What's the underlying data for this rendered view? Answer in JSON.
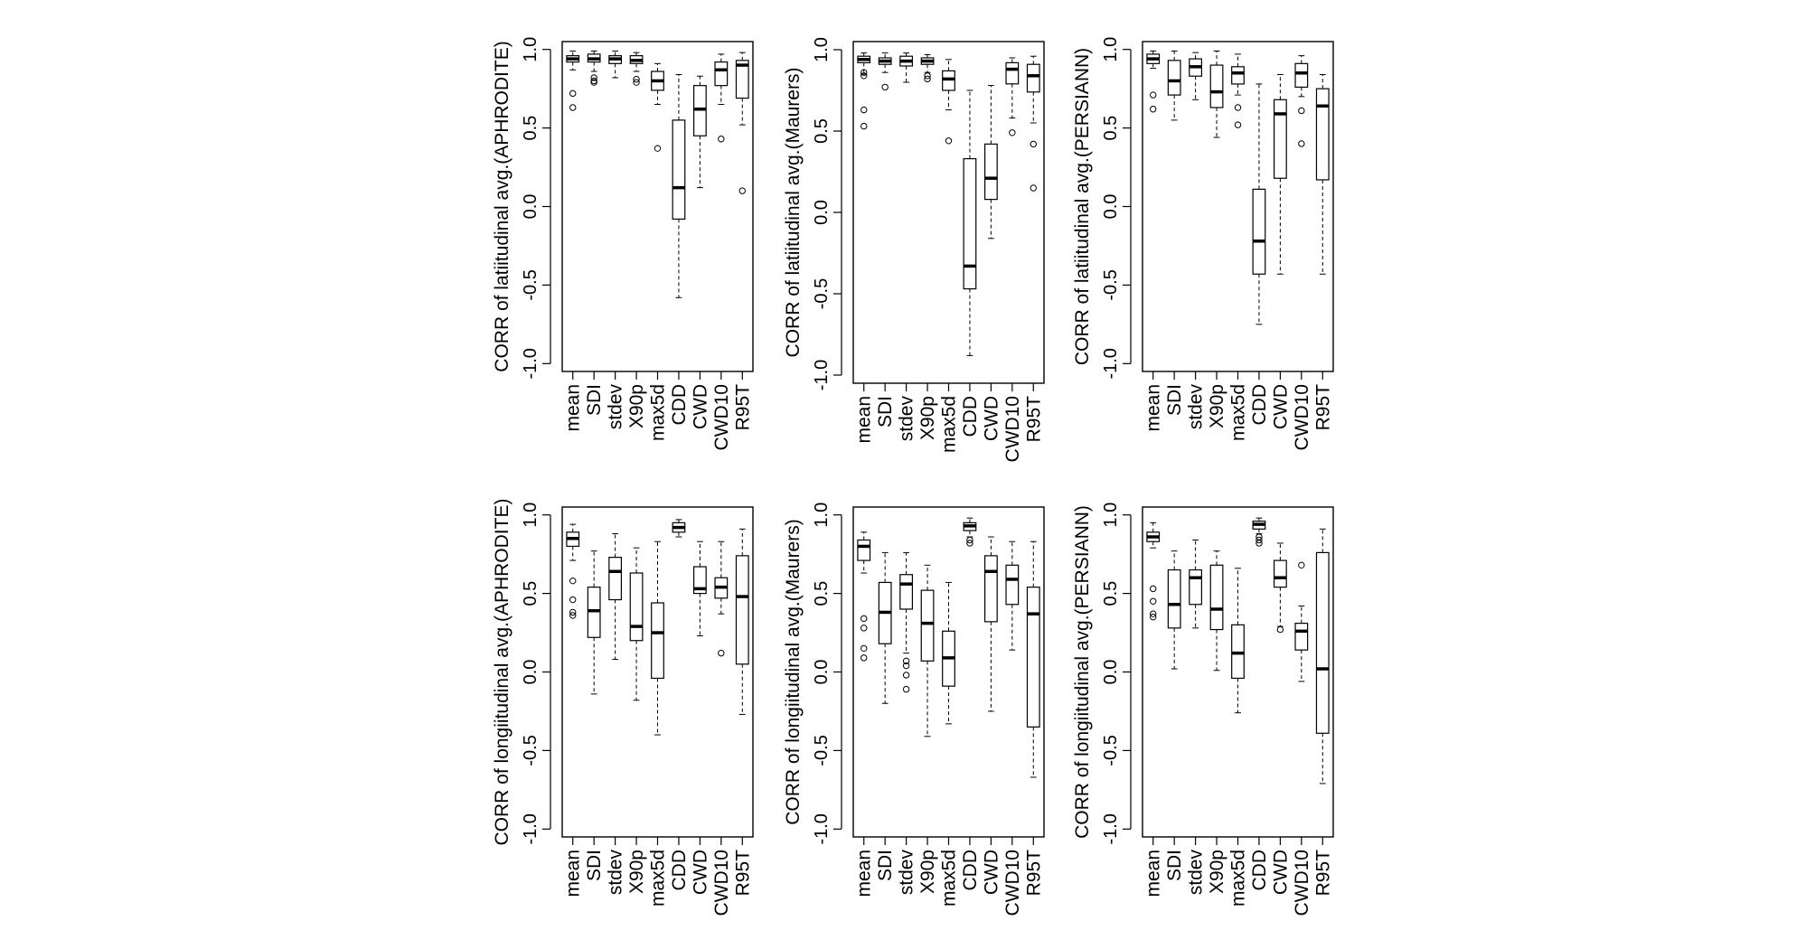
{
  "chart_data": [
    {
      "type": "box",
      "ylabel": "CORR of latiitudinal avg.(APHRODITE)",
      "categories": [
        "mean",
        "SDI",
        "stdev",
        "X90p",
        "max5d",
        "CDD",
        "CWD",
        "CWD10",
        "R95T"
      ],
      "yticks": [
        "-1.0",
        "-0.5",
        "0.0",
        "0.5",
        "1.0"
      ],
      "ylim": [
        -1.05,
        1.05
      ],
      "boxes": [
        {
          "min": 0.87,
          "q1": 0.92,
          "median": 0.94,
          "q3": 0.96,
          "max": 0.99,
          "outliers": [
            0.72,
            0.63
          ]
        },
        {
          "min": 0.86,
          "q1": 0.92,
          "median": 0.94,
          "q3": 0.97,
          "max": 0.99,
          "outliers": [
            0.82,
            0.8,
            0.79
          ]
        },
        {
          "min": 0.82,
          "q1": 0.91,
          "median": 0.94,
          "q3": 0.96,
          "max": 0.99,
          "outliers": []
        },
        {
          "min": 0.86,
          "q1": 0.91,
          "median": 0.93,
          "q3": 0.96,
          "max": 0.98,
          "outliers": [
            0.81,
            0.79
          ]
        },
        {
          "min": 0.65,
          "q1": 0.74,
          "median": 0.8,
          "q3": 0.86,
          "max": 0.91,
          "outliers": [
            0.37
          ]
        },
        {
          "min": -0.58,
          "q1": -0.08,
          "median": 0.12,
          "q3": 0.55,
          "max": 0.84,
          "outliers": []
        },
        {
          "min": 0.12,
          "q1": 0.45,
          "median": 0.62,
          "q3": 0.77,
          "max": 0.83,
          "outliers": []
        },
        {
          "min": 0.65,
          "q1": 0.77,
          "median": 0.87,
          "q3": 0.92,
          "max": 0.97,
          "outliers": [
            0.43
          ]
        },
        {
          "min": 0.52,
          "q1": 0.69,
          "median": 0.9,
          "q3": 0.93,
          "max": 0.98,
          "outliers": [
            0.1
          ]
        }
      ]
    },
    {
      "type": "box",
      "ylabel": "CORR of latiitudinal avg.(Maurers)",
      "categories": [
        "mean",
        "SDI",
        "stdev",
        "X90p",
        "max5d",
        "CDD",
        "CWD",
        "CWD10",
        "R95T"
      ],
      "yticks": [
        "-1.0",
        "-0.5",
        "0.0",
        "0.5",
        "1.0"
      ],
      "ylim": [
        -1.05,
        1.05
      ],
      "boxes": [
        {
          "min": 0.85,
          "q1": 0.92,
          "median": 0.94,
          "q3": 0.96,
          "max": 0.98,
          "outliers": [
            0.86,
            0.84,
            0.63,
            0.53
          ]
        },
        {
          "min": 0.86,
          "q1": 0.91,
          "median": 0.93,
          "q3": 0.95,
          "max": 0.98,
          "outliers": [
            0.77
          ]
        },
        {
          "min": 0.8,
          "q1": 0.9,
          "median": 0.93,
          "q3": 0.96,
          "max": 0.98,
          "outliers": []
        },
        {
          "min": 0.86,
          "q1": 0.91,
          "median": 0.93,
          "q3": 0.95,
          "max": 0.97,
          "outliers": [
            0.84,
            0.82
          ]
        },
        {
          "min": 0.63,
          "q1": 0.75,
          "median": 0.82,
          "q3": 0.87,
          "max": 0.94,
          "outliers": [
            0.44
          ]
        },
        {
          "min": -0.88,
          "q1": -0.47,
          "median": -0.33,
          "q3": 0.33,
          "max": 0.75,
          "outliers": []
        },
        {
          "min": -0.16,
          "q1": 0.08,
          "median": 0.21,
          "q3": 0.42,
          "max": 0.78,
          "outliers": []
        },
        {
          "min": 0.58,
          "q1": 0.79,
          "median": 0.88,
          "q3": 0.92,
          "max": 0.95,
          "outliers": [
            0.49
          ]
        },
        {
          "min": 0.55,
          "q1": 0.74,
          "median": 0.84,
          "q3": 0.91,
          "max": 0.96,
          "outliers": [
            0.42,
            0.15
          ]
        }
      ]
    },
    {
      "type": "box",
      "ylabel": "CORR of latiitudinal avg.(PERSIANN)",
      "categories": [
        "mean",
        "SDI",
        "stdev",
        "X90p",
        "max5d",
        "CDD",
        "CWD",
        "CWD10",
        "R95T"
      ],
      "yticks": [
        "-1.0",
        "-0.5",
        "0.0",
        "0.5",
        "1.0"
      ],
      "ylim": [
        -1.05,
        1.05
      ],
      "boxes": [
        {
          "min": 0.88,
          "q1": 0.91,
          "median": 0.94,
          "q3": 0.97,
          "max": 0.99,
          "outliers": [
            0.71,
            0.62
          ]
        },
        {
          "min": 0.55,
          "q1": 0.71,
          "median": 0.8,
          "q3": 0.93,
          "max": 0.99,
          "outliers": []
        },
        {
          "min": 0.68,
          "q1": 0.83,
          "median": 0.89,
          "q3": 0.94,
          "max": 0.98,
          "outliers": []
        },
        {
          "min": 0.44,
          "q1": 0.63,
          "median": 0.73,
          "q3": 0.9,
          "max": 0.99,
          "outliers": []
        },
        {
          "min": 0.71,
          "q1": 0.78,
          "median": 0.85,
          "q3": 0.89,
          "max": 0.97,
          "outliers": [
            0.63,
            0.52
          ]
        },
        {
          "min": -0.75,
          "q1": -0.43,
          "median": -0.22,
          "q3": 0.11,
          "max": 0.78,
          "outliers": []
        },
        {
          "min": -0.43,
          "q1": 0.18,
          "median": 0.59,
          "q3": 0.68,
          "max": 0.84,
          "outliers": []
        },
        {
          "min": 0.7,
          "q1": 0.76,
          "median": 0.85,
          "q3": 0.91,
          "max": 0.96,
          "outliers": [
            0.61,
            0.4
          ]
        },
        {
          "min": -0.43,
          "q1": 0.17,
          "median": 0.64,
          "q3": 0.75,
          "max": 0.84,
          "outliers": []
        }
      ]
    },
    {
      "type": "box",
      "ylabel": "CORR of longiitudinal avg.(APHRODITE)",
      "categories": [
        "mean",
        "SDI",
        "stdev",
        "X90p",
        "max5d",
        "CDD",
        "CWD",
        "CWD10",
        "R95T"
      ],
      "yticks": [
        "-1.0",
        "-0.5",
        "0.0",
        "0.5",
        "1.0"
      ],
      "ylim": [
        -1.05,
        1.05
      ],
      "boxes": [
        {
          "min": 0.71,
          "q1": 0.8,
          "median": 0.85,
          "q3": 0.89,
          "max": 0.94,
          "outliers": [
            0.58,
            0.46,
            0.38,
            0.36
          ]
        },
        {
          "min": -0.14,
          "q1": 0.22,
          "median": 0.39,
          "q3": 0.54,
          "max": 0.77,
          "outliers": []
        },
        {
          "min": 0.08,
          "q1": 0.46,
          "median": 0.64,
          "q3": 0.73,
          "max": 0.88,
          "outliers": []
        },
        {
          "min": -0.18,
          "q1": 0.2,
          "median": 0.29,
          "q3": 0.63,
          "max": 0.79,
          "outliers": []
        },
        {
          "min": -0.4,
          "q1": -0.04,
          "median": 0.25,
          "q3": 0.44,
          "max": 0.83,
          "outliers": []
        },
        {
          "min": 0.86,
          "q1": 0.89,
          "median": 0.92,
          "q3": 0.95,
          "max": 0.97,
          "outliers": []
        },
        {
          "min": 0.23,
          "q1": 0.5,
          "median": 0.53,
          "q3": 0.67,
          "max": 0.83,
          "outliers": []
        },
        {
          "min": 0.37,
          "q1": 0.47,
          "median": 0.54,
          "q3": 0.6,
          "max": 0.83,
          "outliers": [
            0.12
          ]
        },
        {
          "min": -0.27,
          "q1": 0.05,
          "median": 0.48,
          "q3": 0.74,
          "max": 0.91,
          "outliers": []
        }
      ]
    },
    {
      "type": "box",
      "ylabel": "CORR of longiitudinal avg.(Maurers)",
      "categories": [
        "mean",
        "SDI",
        "stdev",
        "X90p",
        "max5d",
        "CDD",
        "CWD",
        "CWD10",
        "R95T"
      ],
      "yticks": [
        "-1.0",
        "-0.5",
        "0.0",
        "0.5",
        "1.0"
      ],
      "ylim": [
        -1.05,
        1.05
      ],
      "boxes": [
        {
          "min": 0.63,
          "q1": 0.71,
          "median": 0.8,
          "q3": 0.84,
          "max": 0.89,
          "outliers": [
            0.34,
            0.28,
            0.15,
            0.09
          ]
        },
        {
          "min": -0.2,
          "q1": 0.18,
          "median": 0.38,
          "q3": 0.57,
          "max": 0.76,
          "outliers": []
        },
        {
          "min": 0.12,
          "q1": 0.4,
          "median": 0.56,
          "q3": 0.62,
          "max": 0.76,
          "outliers": [
            0.07,
            0.04,
            -0.02,
            -0.11
          ]
        },
        {
          "min": -0.41,
          "q1": 0.07,
          "median": 0.31,
          "q3": 0.52,
          "max": 0.68,
          "outliers": []
        },
        {
          "min": -0.33,
          "q1": -0.09,
          "median": 0.09,
          "q3": 0.26,
          "max": 0.57,
          "outliers": []
        },
        {
          "min": 0.86,
          "q1": 0.9,
          "median": 0.93,
          "q3": 0.95,
          "max": 0.98,
          "outliers": [
            0.84,
            0.82
          ]
        },
        {
          "min": -0.25,
          "q1": 0.32,
          "median": 0.64,
          "q3": 0.74,
          "max": 0.86,
          "outliers": []
        },
        {
          "min": 0.14,
          "q1": 0.43,
          "median": 0.59,
          "q3": 0.68,
          "max": 0.83,
          "outliers": []
        },
        {
          "min": -0.67,
          "q1": -0.35,
          "median": 0.37,
          "q3": 0.54,
          "max": 0.83,
          "outliers": []
        }
      ]
    },
    {
      "type": "box",
      "ylabel": "CORR of longiitudinal avg.(PERSIANN)",
      "categories": [
        "mean",
        "SDI",
        "stdev",
        "X90p",
        "max5d",
        "CDD",
        "CWD",
        "CWD10",
        "R95T"
      ],
      "yticks": [
        "-1.0",
        "-0.5",
        "0.0",
        "0.5",
        "1.0"
      ],
      "ylim": [
        -1.05,
        1.05
      ],
      "boxes": [
        {
          "min": 0.79,
          "q1": 0.83,
          "median": 0.86,
          "q3": 0.89,
          "max": 0.95,
          "outliers": [
            0.53,
            0.45,
            0.37,
            0.35
          ]
        },
        {
          "min": 0.02,
          "q1": 0.28,
          "median": 0.43,
          "q3": 0.65,
          "max": 0.77,
          "outliers": []
        },
        {
          "min": 0.28,
          "q1": 0.43,
          "median": 0.6,
          "q3": 0.65,
          "max": 0.84,
          "outliers": []
        },
        {
          "min": 0.01,
          "q1": 0.27,
          "median": 0.4,
          "q3": 0.68,
          "max": 0.77,
          "outliers": []
        },
        {
          "min": -0.26,
          "q1": -0.04,
          "median": 0.12,
          "q3": 0.3,
          "max": 0.66,
          "outliers": []
        },
        {
          "min": 0.88,
          "q1": 0.91,
          "median": 0.94,
          "q3": 0.96,
          "max": 0.98,
          "outliers": [
            0.86,
            0.84,
            0.82
          ]
        },
        {
          "min": 0.29,
          "q1": 0.54,
          "median": 0.6,
          "q3": 0.71,
          "max": 0.82,
          "outliers": [
            0.27
          ]
        },
        {
          "min": -0.06,
          "q1": 0.14,
          "median": 0.26,
          "q3": 0.31,
          "max": 0.42,
          "outliers": [
            0.68
          ]
        },
        {
          "min": -0.71,
          "q1": -0.39,
          "median": 0.02,
          "q3": 0.76,
          "max": 0.91,
          "outliers": []
        }
      ]
    }
  ]
}
